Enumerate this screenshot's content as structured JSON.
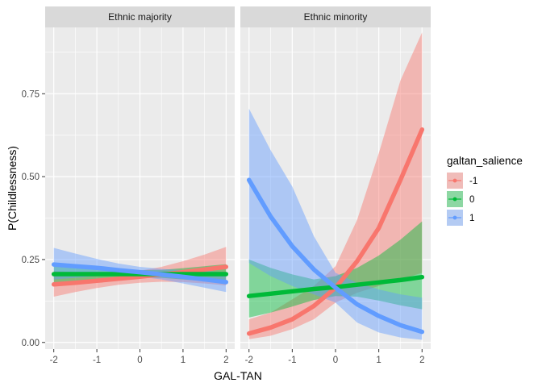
{
  "chart_data": {
    "type": "line",
    "subtype": "faceted line with confidence ribbons",
    "xlabel": "GAL-TAN",
    "ylabel": "P(Childlessness)",
    "xlim": [
      -2.2,
      2.2
    ],
    "ylim": [
      -0.02,
      0.95
    ],
    "xticks": [
      -2,
      -1,
      0,
      1,
      2
    ],
    "xtick_labels": [
      "-2",
      "-1",
      "0",
      "1",
      "2"
    ],
    "yticks": [
      0.0,
      0.25,
      0.5,
      0.75
    ],
    "ytick_labels": [
      "0.00",
      "0.25",
      "0.50",
      "0.75"
    ],
    "x": [
      -2,
      -1.5,
      -1,
      -0.5,
      0,
      0.5,
      1,
      1.5,
      2
    ],
    "legend": {
      "title": "galtan_salience",
      "placement": "right",
      "entries": [
        {
          "label": "-1",
          "color": "#F8766D"
        },
        {
          "label": "0",
          "color": "#00BA38"
        },
        {
          "label": "1",
          "color": "#619CFF"
        }
      ]
    },
    "panel_background": "#EBEBEB",
    "strip_background": "#D9D9D9",
    "grid": true,
    "facets": [
      {
        "label": "Ethnic majority",
        "series": [
          {
            "name": "-1",
            "color": "#F8766D",
            "y": [
              0.175,
              0.18,
              0.186,
              0.192,
              0.198,
              0.205,
              0.212,
              0.22,
              0.228
            ],
            "lower": [
              0.138,
              0.152,
              0.164,
              0.174,
              0.18,
              0.183,
              0.182,
              0.178,
              0.172
            ],
            "upper": [
              0.215,
              0.212,
              0.21,
              0.21,
              0.216,
              0.228,
              0.245,
              0.265,
              0.288
            ]
          },
          {
            "name": "0",
            "color": "#00BA38",
            "y": [
              0.206,
              0.206,
              0.206,
              0.206,
              0.206,
              0.206,
              0.206,
              0.206,
              0.206
            ],
            "lower": [
              0.18,
              0.185,
              0.19,
              0.195,
              0.195,
              0.195,
              0.19,
              0.185,
              0.18
            ],
            "upper": [
              0.234,
              0.228,
              0.223,
              0.218,
              0.218,
              0.219,
              0.224,
              0.23,
              0.236
            ]
          },
          {
            "name": "1",
            "color": "#619CFF",
            "y": [
              0.235,
              0.23,
              0.225,
              0.218,
              0.212,
              0.205,
              0.198,
              0.19,
              0.182
            ],
            "lower": [
              0.19,
              0.195,
              0.2,
              0.2,
              0.198,
              0.19,
              0.178,
              0.165,
              0.152
            ],
            "upper": [
              0.285,
              0.268,
              0.252,
              0.238,
              0.228,
              0.222,
              0.218,
              0.215,
              0.212
            ]
          }
        ]
      },
      {
        "label": "Ethnic minority",
        "series": [
          {
            "name": "-1",
            "color": "#F8766D",
            "y": [
              0.027,
              0.045,
              0.07,
              0.11,
              0.165,
              0.245,
              0.345,
              0.49,
              0.642
            ],
            "lower": [
              0.01,
              0.02,
              0.04,
              0.07,
              0.12,
              0.15,
              0.17,
              0.19,
              0.21
            ],
            "upper": [
              0.07,
              0.09,
              0.13,
              0.17,
              0.23,
              0.37,
              0.57,
              0.79,
              0.935
            ]
          },
          {
            "name": "0",
            "color": "#00BA38",
            "y": [
              0.14,
              0.147,
              0.154,
              0.161,
              0.167,
              0.174,
              0.181,
              0.188,
              0.197
            ],
            "lower": [
              0.075,
              0.09,
              0.108,
              0.128,
              0.14,
              0.138,
              0.126,
              0.112,
              0.1
            ],
            "upper": [
              0.25,
              0.225,
              0.205,
              0.19,
              0.2,
              0.225,
              0.262,
              0.31,
              0.365
            ]
          },
          {
            "name": "1",
            "color": "#619CFF",
            "y": [
              0.49,
              0.38,
              0.29,
              0.22,
              0.165,
              0.115,
              0.08,
              0.052,
              0.032
            ],
            "lower": [
              0.24,
              0.2,
              0.17,
              0.145,
              0.12,
              0.06,
              0.03,
              0.015,
              0.008
            ],
            "upper": [
              0.705,
              0.58,
              0.47,
              0.32,
              0.21,
              0.18,
              0.16,
              0.145,
              0.135
            ]
          }
        ]
      }
    ]
  }
}
